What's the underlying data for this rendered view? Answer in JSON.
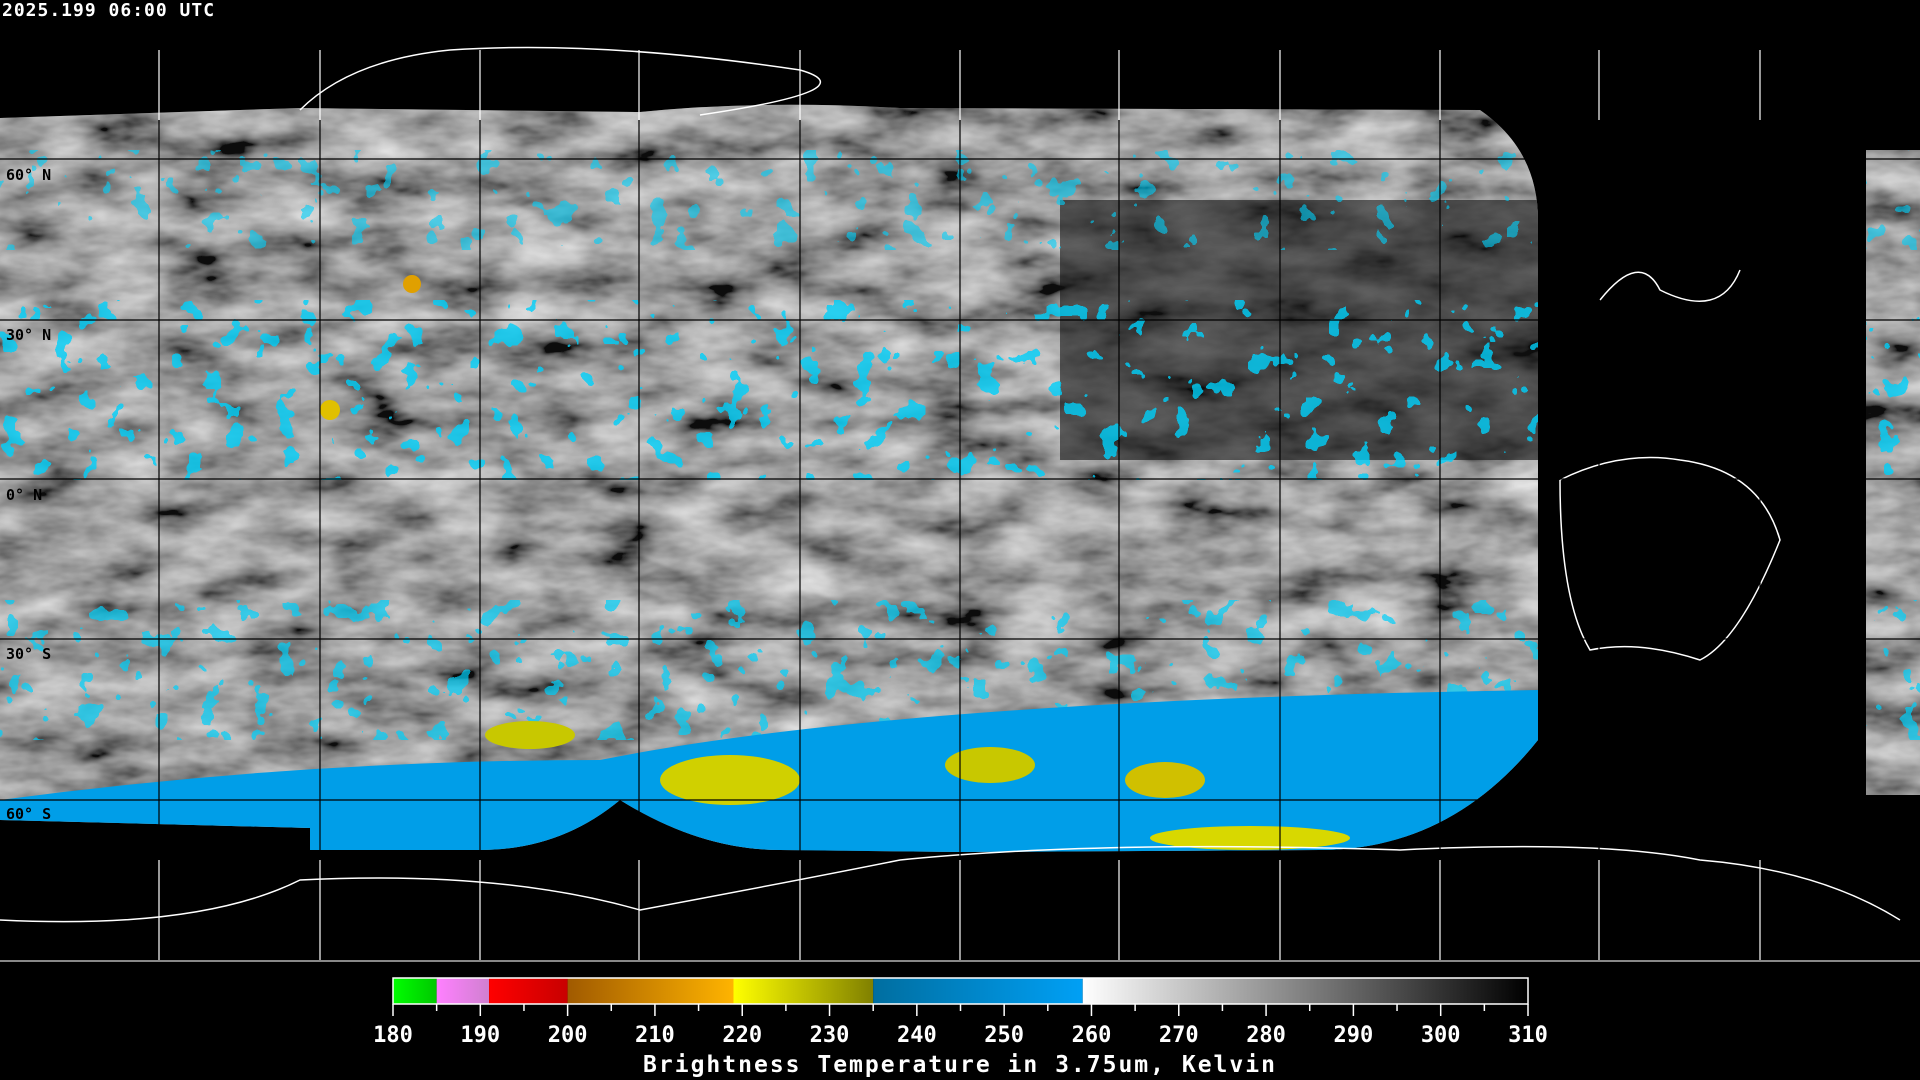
{
  "header": {
    "timestamp": "2025.199 06:00 UTC"
  },
  "map": {
    "projection": "equirectangular",
    "gridline_color": "#000000",
    "coastline_color": "#ffffff",
    "lat_labels": [
      "60° N",
      "30° N",
      "0° N",
      "30° S",
      "60° S"
    ]
  },
  "colorbar": {
    "title": "Brightness Temperature in 3.75um, Kelvin",
    "min": 180,
    "max": 310,
    "tick_labels": [
      "180",
      "190",
      "200",
      "210",
      "220",
      "230",
      "240",
      "250",
      "260",
      "270",
      "280",
      "290",
      "300",
      "310"
    ],
    "segments": [
      {
        "from": 180,
        "to": 185,
        "c0": "#00ff00",
        "c1": "#00c800"
      },
      {
        "from": 185,
        "to": 191,
        "c0": "#ff80ff",
        "c1": "#d080d0"
      },
      {
        "from": 191,
        "to": 200,
        "c0": "#ff0000",
        "c1": "#c80000"
      },
      {
        "from": 200,
        "to": 219,
        "c0": "#a05a00",
        "c1": "#ffb400"
      },
      {
        "from": 219,
        "to": 235,
        "c0": "#ffff00",
        "c1": "#808000"
      },
      {
        "from": 235,
        "to": 259,
        "c0": "#006ea0",
        "c1": "#00a0f5"
      },
      {
        "from": 259,
        "to": 310,
        "c0": "#ffffff",
        "c1": "#000000"
      }
    ]
  }
}
